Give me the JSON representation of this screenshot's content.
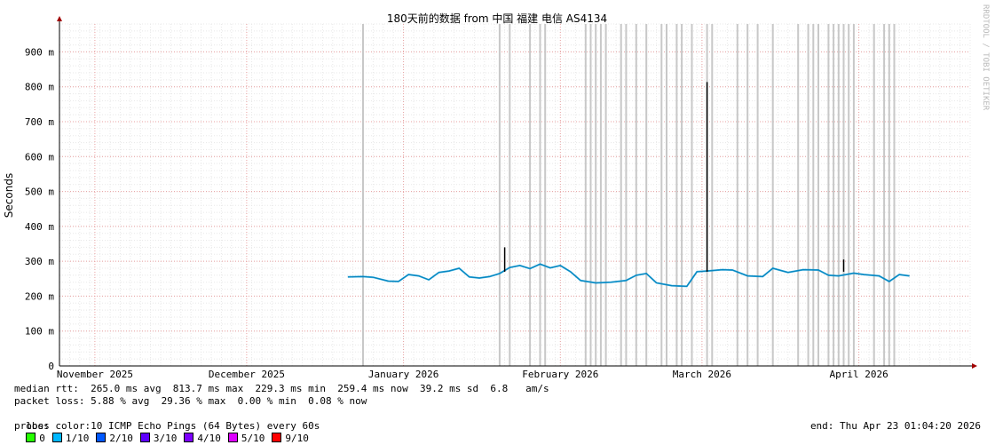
{
  "chart_data": {
    "type": "line",
    "title": "180天前的数据 from 中国 福建 电信 AS4134",
    "ylabel": "Seconds",
    "xlabel": "",
    "watermark": "RRDTOOL / TOBI OETIKER",
    "ylim": [
      0,
      0.98
    ],
    "yticks": [
      {
        "value": 0,
        "label": "0"
      },
      {
        "value": 0.1,
        "label": "100 m"
      },
      {
        "value": 0.2,
        "label": "200 m"
      },
      {
        "value": 0.3,
        "label": "300 m"
      },
      {
        "value": 0.4,
        "label": "400 m"
      },
      {
        "value": 0.5,
        "label": "500 m"
      },
      {
        "value": 0.6,
        "label": "600 m"
      },
      {
        "value": 0.7,
        "label": "700 m"
      },
      {
        "value": 0.8,
        "label": "800 m"
      },
      {
        "value": 0.9,
        "label": "900 m"
      }
    ],
    "xlim": [
      "2025-10-25",
      "2026-04-23"
    ],
    "xticks": [
      {
        "date": "2025-11-01",
        "label": "November 2025"
      },
      {
        "date": "2025-12-01",
        "label": "December 2025"
      },
      {
        "date": "2026-01-01",
        "label": "January 2026"
      },
      {
        "date": "2026-02-01",
        "label": "February 2026"
      },
      {
        "date": "2026-03-01",
        "label": "March 2026"
      },
      {
        "date": "2026-04-01",
        "label": "April 2026"
      }
    ],
    "grid": true,
    "series": [
      {
        "name": "median rtt",
        "color": "#0aa0dc",
        "points": [
          [
            "2025-12-21",
            0.255
          ],
          [
            "2025-12-24",
            0.256
          ],
          [
            "2025-12-26",
            0.254
          ],
          [
            "2025-12-29",
            0.243
          ],
          [
            "2025-12-31",
            0.242
          ],
          [
            "2026-01-02",
            0.262
          ],
          [
            "2026-01-04",
            0.258
          ],
          [
            "2026-01-06",
            0.247
          ],
          [
            "2026-01-08",
            0.268
          ],
          [
            "2026-01-10",
            0.272
          ],
          [
            "2026-01-12",
            0.28
          ],
          [
            "2026-01-14",
            0.255
          ],
          [
            "2026-01-16",
            0.252
          ],
          [
            "2026-01-18",
            0.256
          ],
          [
            "2026-01-20",
            0.265
          ],
          [
            "2026-01-22",
            0.282
          ],
          [
            "2026-01-24",
            0.288
          ],
          [
            "2026-01-26",
            0.279
          ],
          [
            "2026-01-28",
            0.292
          ],
          [
            "2026-01-30",
            0.281
          ],
          [
            "2026-02-01",
            0.288
          ],
          [
            "2026-02-03",
            0.27
          ],
          [
            "2026-02-05",
            0.245
          ],
          [
            "2026-02-08",
            0.238
          ],
          [
            "2026-02-11",
            0.24
          ],
          [
            "2026-02-14",
            0.245
          ],
          [
            "2026-02-16",
            0.26
          ],
          [
            "2026-02-18",
            0.265
          ],
          [
            "2026-02-20",
            0.238
          ],
          [
            "2026-02-23",
            0.23
          ],
          [
            "2026-02-26",
            0.228
          ],
          [
            "2026-02-28",
            0.27
          ],
          [
            "2026-03-02",
            0.272
          ],
          [
            "2026-03-05",
            0.276
          ],
          [
            "2026-03-07",
            0.275
          ],
          [
            "2026-03-10",
            0.258
          ],
          [
            "2026-03-13",
            0.256
          ],
          [
            "2026-03-15",
            0.28
          ],
          [
            "2026-03-18",
            0.268
          ],
          [
            "2026-03-21",
            0.276
          ],
          [
            "2026-03-24",
            0.275
          ],
          [
            "2026-03-26",
            0.26
          ],
          [
            "2026-03-28",
            0.258
          ],
          [
            "2026-03-31",
            0.266
          ],
          [
            "2026-04-02",
            0.262
          ],
          [
            "2026-04-05",
            0.258
          ],
          [
            "2026-04-07",
            0.242
          ],
          [
            "2026-04-09",
            0.262
          ],
          [
            "2026-04-11",
            0.258
          ]
        ]
      }
    ],
    "spikes": [
      [
        "2026-01-21",
        0.34
      ],
      [
        "2026-03-02",
        0.8137
      ],
      [
        "2026-03-29",
        0.305
      ]
    ],
    "loss_marks": [
      "2025-12-24",
      "2026-01-20",
      "2026-01-22",
      "2026-01-26",
      "2026-01-28",
      "2026-01-29",
      "2026-02-06",
      "2026-02-07",
      "2026-02-08",
      "2026-02-09",
      "2026-02-10",
      "2026-02-13",
      "2026-02-14",
      "2026-02-16",
      "2026-02-18",
      "2026-02-21",
      "2026-02-22",
      "2026-02-24",
      "2026-02-25",
      "2026-02-27",
      "2026-03-02",
      "2026-03-03",
      "2026-03-08",
      "2026-03-10",
      "2026-03-12",
      "2026-03-15",
      "2026-03-20",
      "2026-03-22",
      "2026-03-23",
      "2026-03-24",
      "2026-03-26",
      "2026-03-27",
      "2026-03-28",
      "2026-03-29",
      "2026-03-30",
      "2026-03-31",
      "2026-04-04",
      "2026-04-06",
      "2026-04-07",
      "2026-04-08"
    ]
  },
  "stats": {
    "median_line": "median rtt:  265.0 ms avg  813.7 ms max  229.3 ms min  259.4 ms now  39.2 ms sd  6.8   am/s",
    "loss_line": "packet loss: 5.88 % avg  29.36 % max  0.00 % min  0.08 % now",
    "loss_color_label": "loss color:",
    "loss_colors": [
      {
        "label": "0",
        "color": "#26ff00"
      },
      {
        "label": "1/10",
        "color": "#00b8ff"
      },
      {
        "label": "2/10",
        "color": "#0059ff"
      },
      {
        "label": "3/10",
        "color": "#5e00ff"
      },
      {
        "label": "4/10",
        "color": "#7e00ff"
      },
      {
        "label": "5/10",
        "color": "#dd00ff"
      },
      {
        "label": "9/10",
        "color": "#ff0000"
      }
    ],
    "probe_line": "probe:       10 ICMP Echo Pings (64 Bytes) every 60s",
    "end_line": "end: Thu Apr 23 01:04:20 2026"
  }
}
